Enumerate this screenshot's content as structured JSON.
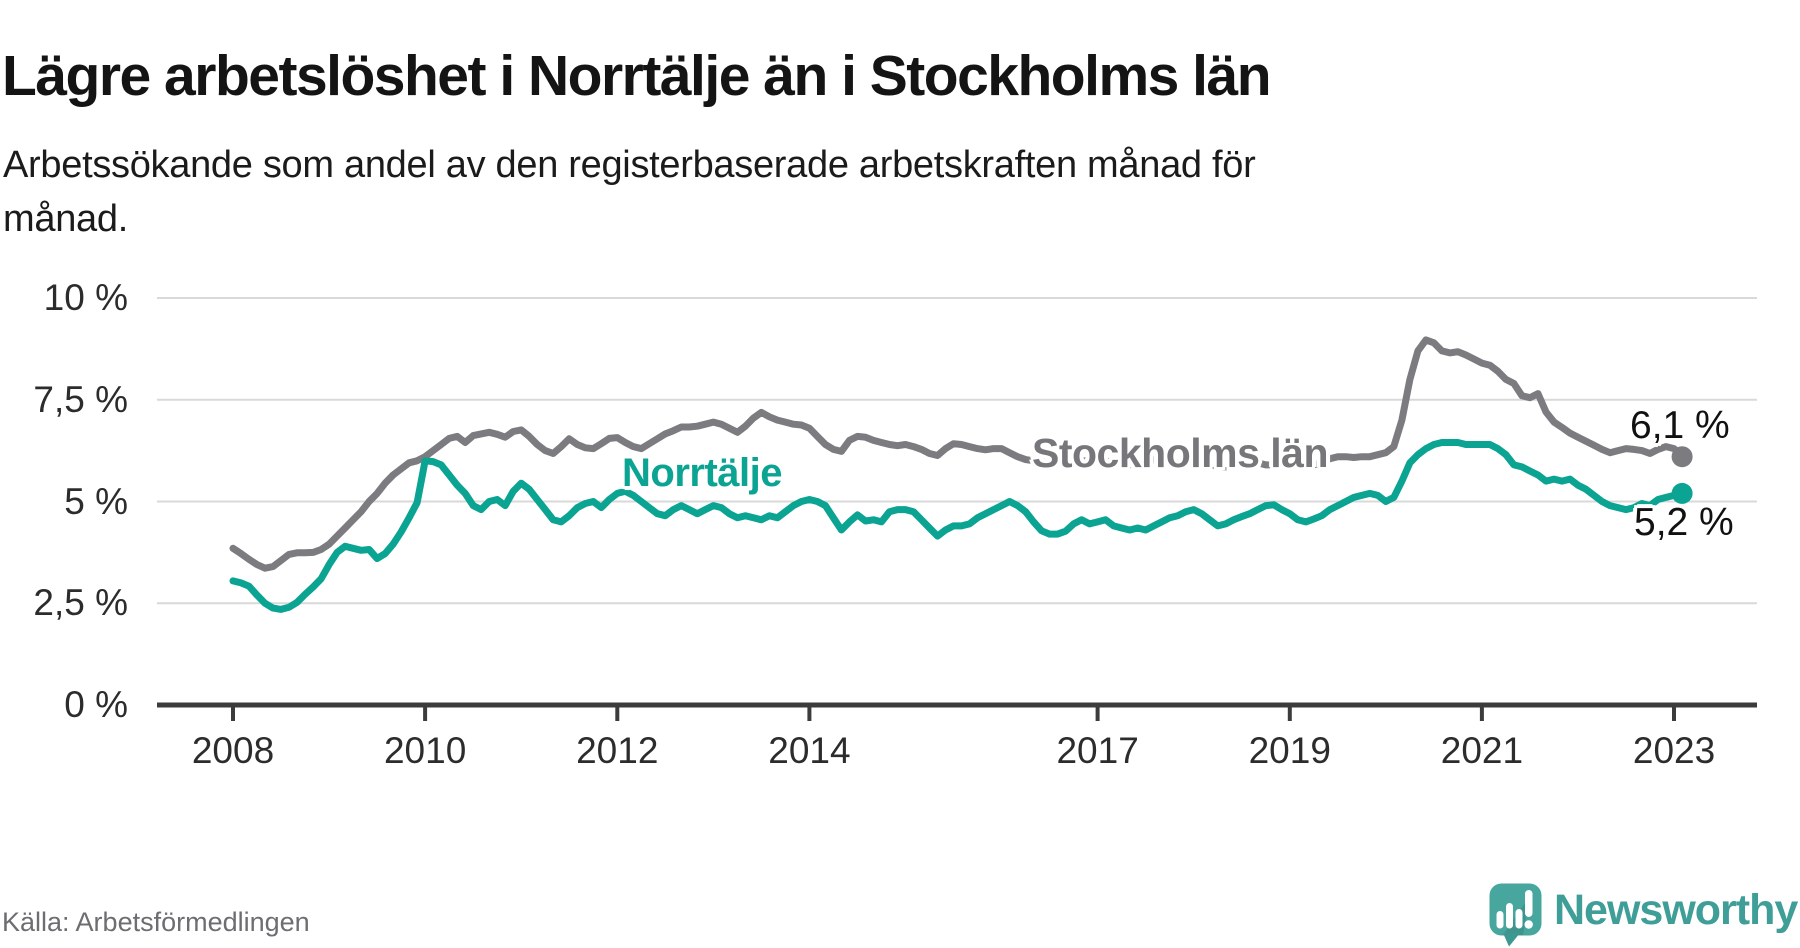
{
  "header": {
    "title": "Lägre arbetslöshet i Norrtälje än i Stockholms län",
    "subtitle": "Arbetssökande som andel av den registerbaserade arbetskraften månad för\nmånad."
  },
  "footer": {
    "source": "Källa: Arbetsförmedlingen"
  },
  "logo": {
    "text": "Newsworthy",
    "icon": "newsworthy-speech-bubble-bar-chart-icon"
  },
  "colors": {
    "norrtalje_teal": "#0ba392",
    "stockholm_gray": "#7b7b80",
    "stockholm_label_gray": "#77777b",
    "gridline": "#d9d9d9",
    "axis": "#3c3c3c",
    "tick_text": "#2c2c2c",
    "end_label_text": "#111111",
    "title_text": "#141414",
    "source_text": "#6d6d72",
    "logo_teal": "#3f9e97",
    "logo_icon_teal": "#47a69e",
    "logo_icon_shade": "#338f88"
  },
  "chart_data": {
    "type": "line",
    "title": "Lägre arbetslöshet i Norrtälje än i Stockholms län",
    "xlabel": "",
    "ylabel": "Arbetssökande som andel av den registerbaserade arbetskraften",
    "x_unit": "month",
    "x_start": "2008-01",
    "x_end": "2023-02",
    "grid": true,
    "legend_position": "inline-labels",
    "ylim": [
      0,
      10.5
    ],
    "y_ticks": [
      0,
      2.5,
      5,
      7.5,
      10
    ],
    "y_tick_labels": [
      "0 %",
      "2,5 %",
      "5 %",
      "7,5 %",
      "10 %"
    ],
    "x_tick_years": [
      2008,
      2010,
      2012,
      2014,
      2017,
      2019,
      2021,
      2023
    ],
    "x_tick_labels": [
      "2008",
      "2010",
      "2012",
      "2014",
      "2017",
      "2019",
      "2021",
      "2023"
    ],
    "series": [
      {
        "name": "Stockholms län",
        "color": "#7b7b80",
        "end_label": "6,1 %",
        "end_value": 6.1,
        "values": [
          3.85,
          3.72,
          3.58,
          3.45,
          3.36,
          3.4,
          3.55,
          3.7,
          3.74,
          3.74,
          3.75,
          3.82,
          3.95,
          4.15,
          4.35,
          4.55,
          4.75,
          5.0,
          5.2,
          5.45,
          5.65,
          5.8,
          5.95,
          6.0,
          6.1,
          6.25,
          6.4,
          6.55,
          6.6,
          6.45,
          6.62,
          6.66,
          6.7,
          6.65,
          6.58,
          6.72,
          6.76,
          6.6,
          6.4,
          6.25,
          6.18,
          6.35,
          6.54,
          6.4,
          6.32,
          6.3,
          6.42,
          6.55,
          6.57,
          6.45,
          6.35,
          6.3,
          6.42,
          6.54,
          6.66,
          6.74,
          6.83,
          6.83,
          6.85,
          6.9,
          6.95,
          6.9,
          6.8,
          6.7,
          6.85,
          7.05,
          7.19,
          7.08,
          7.0,
          6.95,
          6.9,
          6.88,
          6.8,
          6.6,
          6.4,
          6.28,
          6.23,
          6.5,
          6.6,
          6.58,
          6.5,
          6.45,
          6.4,
          6.37,
          6.4,
          6.35,
          6.28,
          6.18,
          6.13,
          6.3,
          6.42,
          6.4,
          6.35,
          6.3,
          6.27,
          6.3,
          6.3,
          6.2,
          6.1,
          6.03,
          6.0,
          6.05,
          6.1,
          6.08,
          6.05,
          6.0,
          6.0,
          6.0,
          6.05,
          6.0,
          5.95,
          5.93,
          5.9,
          6.0,
          6.05,
          6.03,
          6.0,
          5.95,
          5.95,
          5.95,
          6.0,
          5.95,
          5.9,
          5.87,
          5.85,
          5.95,
          6.0,
          5.98,
          5.95,
          5.9,
          5.9,
          5.95,
          6.0,
          5.97,
          5.93,
          5.9,
          5.95,
          6.05,
          6.1,
          6.1,
          6.08,
          6.1,
          6.1,
          6.15,
          6.2,
          6.35,
          7.0,
          8.0,
          8.7,
          8.97,
          8.9,
          8.7,
          8.65,
          8.68,
          8.6,
          8.5,
          8.4,
          8.35,
          8.2,
          8.0,
          7.9,
          7.6,
          7.55,
          7.65,
          7.2,
          6.95,
          6.82,
          6.68,
          6.58,
          6.48,
          6.38,
          6.28,
          6.2,
          6.25,
          6.3,
          6.28,
          6.25,
          6.18,
          6.28,
          6.35,
          6.3,
          6.1
        ]
      },
      {
        "name": "Norrtälje",
        "color": "#0ba392",
        "end_label": "5,2 %",
        "end_value": 5.2,
        "values": [
          3.05,
          3.0,
          2.92,
          2.7,
          2.5,
          2.38,
          2.35,
          2.4,
          2.52,
          2.72,
          2.9,
          3.1,
          3.45,
          3.75,
          3.9,
          3.85,
          3.8,
          3.82,
          3.6,
          3.72,
          3.95,
          4.25,
          4.6,
          4.97,
          6.0,
          5.98,
          5.9,
          5.65,
          5.4,
          5.2,
          4.9,
          4.8,
          5.0,
          5.05,
          4.9,
          5.25,
          5.45,
          5.3,
          5.05,
          4.8,
          4.55,
          4.5,
          4.65,
          4.85,
          4.95,
          5.0,
          4.85,
          5.05,
          5.2,
          5.25,
          5.15,
          5.0,
          4.85,
          4.7,
          4.65,
          4.8,
          4.9,
          4.8,
          4.7,
          4.8,
          4.9,
          4.85,
          4.7,
          4.6,
          4.65,
          4.6,
          4.55,
          4.65,
          4.6,
          4.75,
          4.9,
          5.0,
          5.05,
          5.0,
          4.9,
          4.6,
          4.3,
          4.5,
          4.67,
          4.52,
          4.55,
          4.5,
          4.75,
          4.8,
          4.8,
          4.75,
          4.55,
          4.35,
          4.15,
          4.3,
          4.4,
          4.4,
          4.45,
          4.6,
          4.7,
          4.8,
          4.9,
          5.0,
          4.9,
          4.75,
          4.5,
          4.28,
          4.2,
          4.2,
          4.27,
          4.45,
          4.55,
          4.45,
          4.5,
          4.55,
          4.4,
          4.35,
          4.3,
          4.35,
          4.3,
          4.4,
          4.5,
          4.6,
          4.65,
          4.75,
          4.8,
          4.7,
          4.55,
          4.4,
          4.45,
          4.55,
          4.63,
          4.7,
          4.8,
          4.9,
          4.92,
          4.8,
          4.7,
          4.55,
          4.5,
          4.57,
          4.65,
          4.8,
          4.9,
          5.0,
          5.1,
          5.15,
          5.2,
          5.15,
          5.0,
          5.1,
          5.5,
          5.95,
          6.15,
          6.3,
          6.4,
          6.45,
          6.45,
          6.45,
          6.4,
          6.4,
          6.4,
          6.4,
          6.3,
          6.15,
          5.9,
          5.85,
          5.75,
          5.65,
          5.5,
          5.55,
          5.5,
          5.55,
          5.4,
          5.3,
          5.15,
          5.0,
          4.9,
          4.85,
          4.8,
          4.85,
          4.95,
          4.9,
          5.05,
          5.1,
          5.15,
          5.2
        ]
      }
    ]
  }
}
